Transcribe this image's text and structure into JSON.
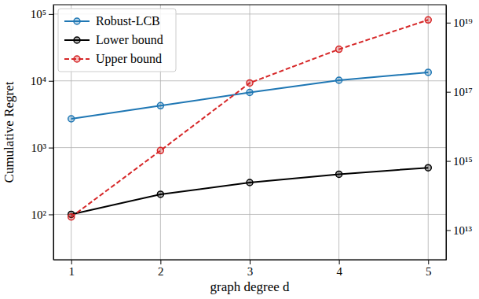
{
  "chart_data": {
    "type": "line",
    "x_label": "graph degree d",
    "y_label": "Cumulative Regret",
    "x": [
      1,
      2,
      3,
      4,
      5
    ],
    "xlim": [
      0.8,
      5.2
    ],
    "xticks": [
      1,
      2,
      3,
      4,
      5
    ],
    "log": "y",
    "ylim": [
      21,
      138000
    ],
    "yticks": [
      {
        "value": 100,
        "label": "10²"
      },
      {
        "value": 1000,
        "label": "10³"
      },
      {
        "value": 10000,
        "label": "10⁴"
      },
      {
        "value": 100000,
        "label": "10⁵"
      }
    ],
    "y2lim": [
      1400000000000.0,
      3.3e+19
    ],
    "y2ticks": [
      {
        "value": 10000000000000.0,
        "label": "10¹³"
      },
      {
        "value": 1000000000000000.0,
        "label": "10¹⁵"
      },
      {
        "value": 1e+17,
        "label": "10¹⁷"
      },
      {
        "value": 1e+19,
        "label": "10¹⁹"
      }
    ],
    "grid": true,
    "legend": "upper left",
    "series": [
      {
        "name": "Robust-LCB",
        "color": "#1f77b4",
        "marker": "circle",
        "line_style": "solid",
        "values": [
          2700,
          4250,
          6700,
          10200,
          13400
        ]
      },
      {
        "name": "Lower bound",
        "color": "#000000",
        "marker": "circle",
        "line_style": "solid",
        "values": [
          100,
          200,
          300,
          400,
          500
        ]
      },
      {
        "name": "Upper bound",
        "color": "#d62728",
        "marker": "circle",
        "line_style": "dashed",
        "axis": "y2",
        "values": [
          24000000000000.0,
          2000000000000000.0,
          1.8e+17,
          1.7e+18,
          1.2e+19
        ]
      }
    ]
  }
}
